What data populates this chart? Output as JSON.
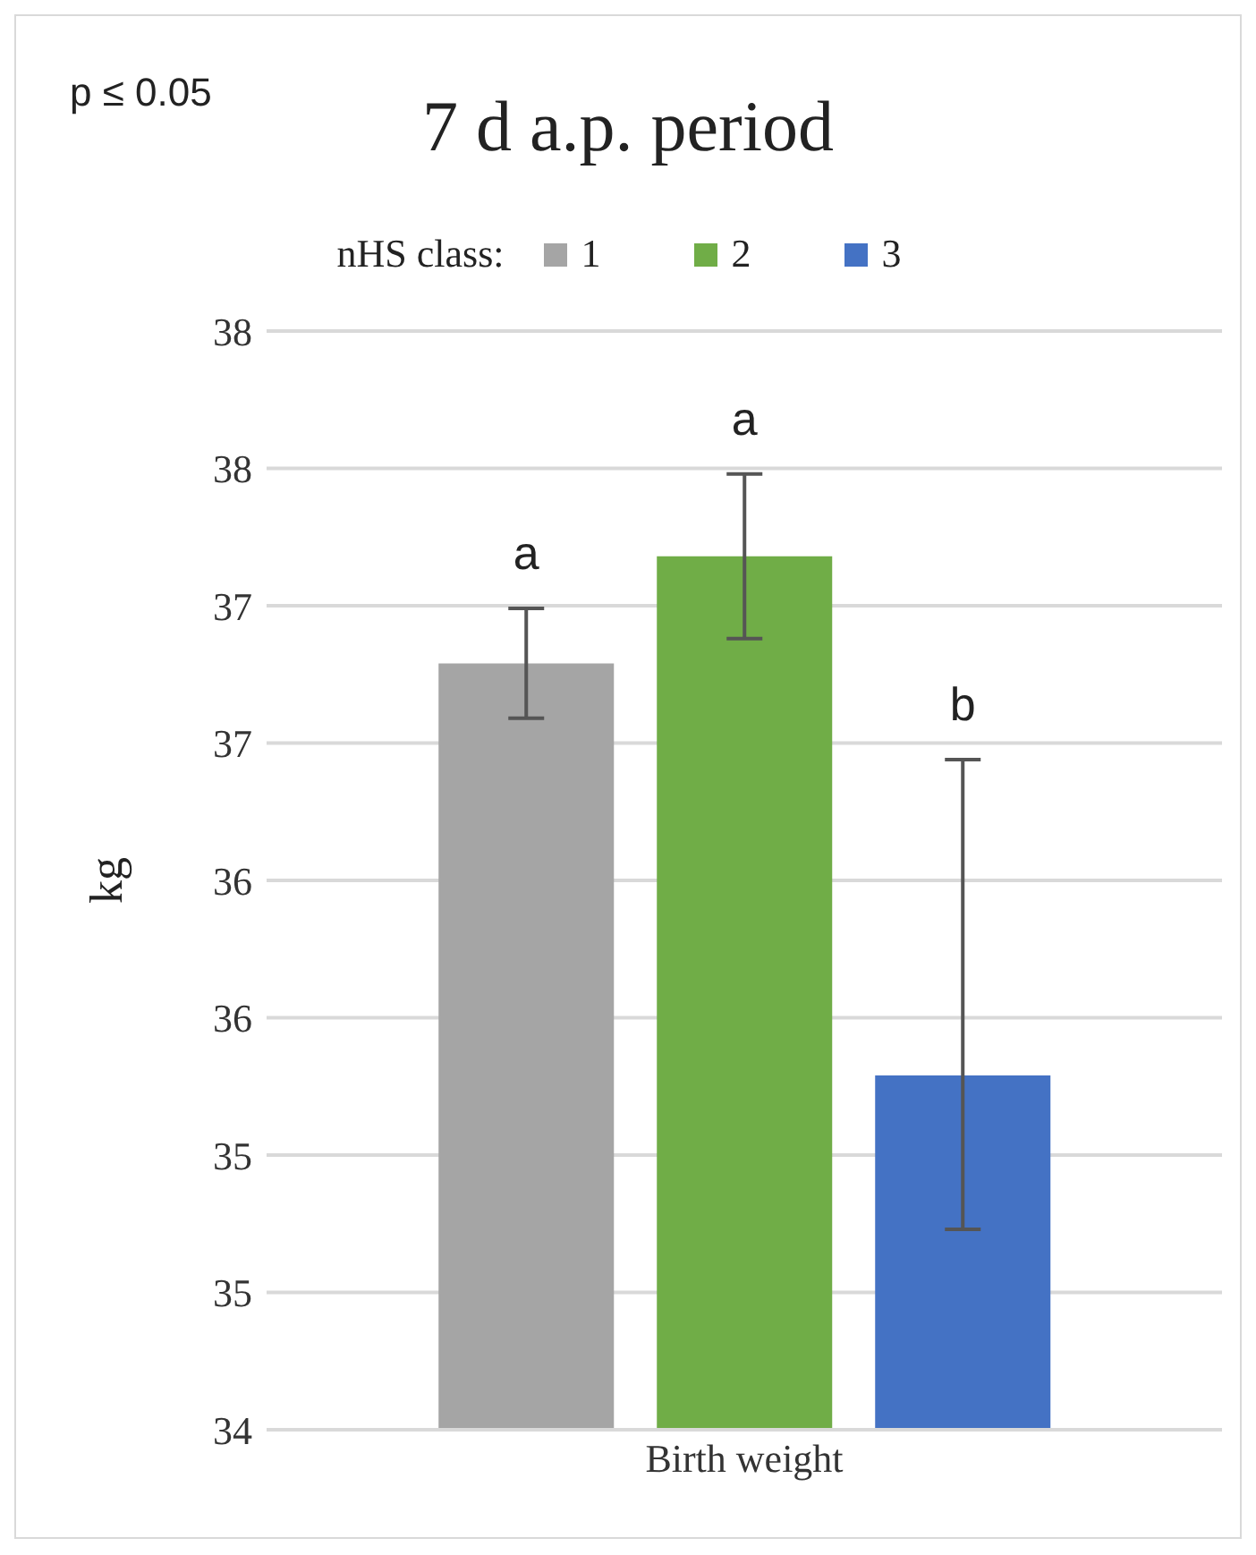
{
  "chart_data": {
    "type": "bar",
    "title": "7 d a.p. period",
    "ylabel": "kg",
    "legend_title": "nHS class:",
    "categories": [
      "Birth weight"
    ],
    "series": [
      {
        "name": "1",
        "color": "#a5a5a5",
        "values": [
          36.79
        ],
        "errors": [
          0.2
        ]
      },
      {
        "name": "2",
        "color": "#70ad47",
        "values": [
          37.18
        ],
        "errors": [
          0.3
        ]
      },
      {
        "name": "3",
        "color": "#4472c4",
        "values": [
          35.29
        ],
        "errors": [
          [
            34.73,
            36.44
          ]
        ]
      }
    ],
    "annotations": [
      "p ≤ 0.05",
      "a",
      "a",
      "b"
    ],
    "ylim": [
      34,
      38
    ],
    "yticks": [
      34,
      {
        "value": 34.5,
        "label": "35"
      },
      35,
      {
        "value": 35.5,
        "label": "36"
      },
      36,
      {
        "value": 36.5,
        "label": "37"
      },
      37,
      {
        "value": 37.5,
        "label": "38"
      },
      38
    ],
    "grid": "y",
    "legend": "top"
  }
}
